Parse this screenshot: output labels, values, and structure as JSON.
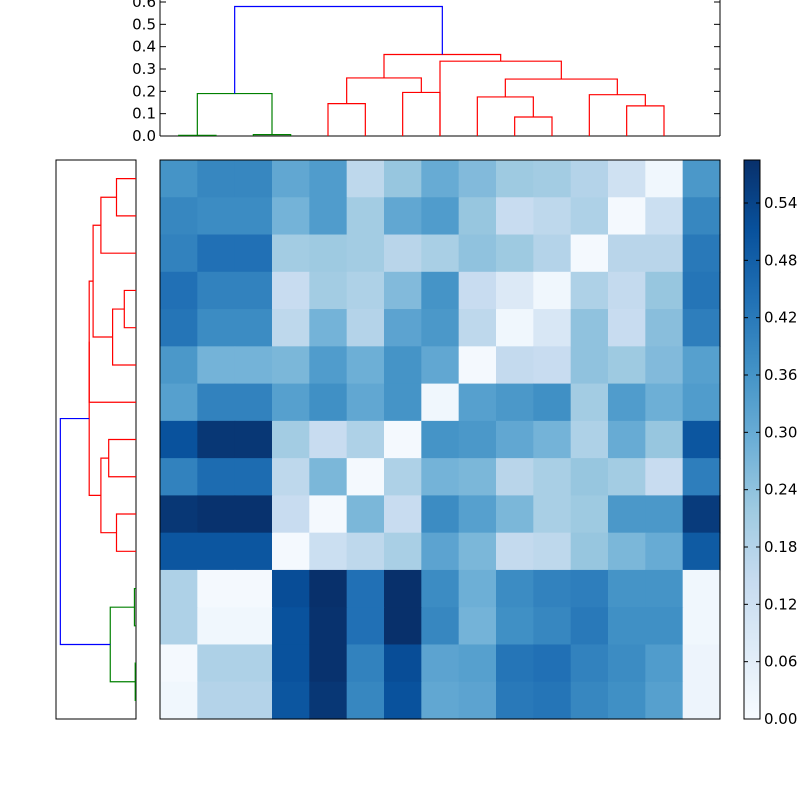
{
  "chart_data": [
    {
      "type": "dendrogram",
      "orientation": "top",
      "ylim": [
        0,
        0.6
      ],
      "yticks": [
        0.0,
        0.1,
        0.2,
        0.3,
        0.4,
        0.5,
        0.6
      ],
      "ytick_labels": [
        "0.0",
        "0.1",
        "0.2",
        "0.3",
        "0.4",
        "0.5",
        "0.6"
      ],
      "leaf_count": 15,
      "links": [
        {
          "left": 0.5,
          "right": 1.5,
          "height": 0.003,
          "left_h": 0,
          "right_h": 0,
          "color": "#008000"
        },
        {
          "left": 2.5,
          "right": 3.5,
          "height": 0.006,
          "left_h": 0,
          "right_h": 0,
          "color": "#008000"
        },
        {
          "left": 1.0,
          "right": 3.0,
          "height": 0.19,
          "left_h": 0.003,
          "right_h": 0.006,
          "color": "#008000"
        },
        {
          "left": 4.5,
          "right": 5.5,
          "height": 0.145,
          "left_h": 0,
          "right_h": 0,
          "color": "#ff0000"
        },
        {
          "left": 6.5,
          "right": 7.5,
          "height": 0.195,
          "left_h": 0,
          "right_h": 0,
          "color": "#ff0000"
        },
        {
          "left": 5.0,
          "right": 7.0,
          "height": 0.26,
          "left_h": 0.145,
          "right_h": 0.195,
          "color": "#ff0000"
        },
        {
          "left": 9.5,
          "right": 10.5,
          "height": 0.085,
          "left_h": 0,
          "right_h": 0,
          "color": "#ff0000"
        },
        {
          "left": 8.5,
          "right": 10.0,
          "height": 0.175,
          "left_h": 0,
          "right_h": 0.085,
          "color": "#ff0000"
        },
        {
          "left": 12.5,
          "right": 13.5,
          "height": 0.135,
          "left_h": 0,
          "right_h": 0,
          "color": "#ff0000"
        },
        {
          "left": 11.5,
          "right": 13.0,
          "height": 0.185,
          "left_h": 0,
          "right_h": 0.135,
          "color": "#ff0000"
        },
        {
          "left": 9.25,
          "right": 12.25,
          "height": 0.255,
          "left_h": 0.175,
          "right_h": 0.185,
          "color": "#ff0000"
        },
        {
          "left": 7.5,
          "right": 10.75,
          "height": 0.335,
          "left_h": 0,
          "right_h": 0.255,
          "color": "#ff0000"
        },
        {
          "left": 6.0,
          "right": 9.125,
          "height": 0.365,
          "left_h": 0.26,
          "right_h": 0.335,
          "color": "#ff0000"
        },
        {
          "left": 2.0,
          "right": 7.5625,
          "height": 0.58,
          "left_h": 0.19,
          "right_h": 0.365,
          "color": "#0000ff"
        }
      ]
    },
    {
      "type": "dendrogram",
      "orientation": "left",
      "leaf_count": 15,
      "links": [
        {
          "a": 0.5,
          "b": 1.5,
          "depth": 0.25,
          "a_d": 0,
          "b_d": 0,
          "color": "#ff0000"
        },
        {
          "a": 1.0,
          "b": 2.5,
          "depth": 0.45,
          "a_d": 0.25,
          "b_d": 0,
          "color": "#ff0000"
        },
        {
          "a": 3.5,
          "b": 4.5,
          "depth": 0.15,
          "a_d": 0,
          "b_d": 0,
          "color": "#ff0000"
        },
        {
          "a": 4.0,
          "b": 5.5,
          "depth": 0.3,
          "a_d": 0.15,
          "b_d": 0,
          "color": "#ff0000"
        },
        {
          "a": 1.75,
          "b": 4.75,
          "depth": 0.55,
          "a_d": 0.45,
          "b_d": 0.3,
          "color": "#ff0000"
        },
        {
          "a": 3.25,
          "b": 6.5,
          "depth": 0.6,
          "a_d": 0.55,
          "b_d": 0,
          "color": "#ff0000"
        },
        {
          "a": 7.5,
          "b": 8.5,
          "depth": 0.35,
          "a_d": 0,
          "b_d": 0,
          "color": "#ff0000"
        },
        {
          "a": 9.5,
          "b": 10.5,
          "depth": 0.25,
          "a_d": 0,
          "b_d": 0,
          "color": "#ff0000"
        },
        {
          "a": 8.0,
          "b": 10.0,
          "depth": 0.45,
          "a_d": 0.35,
          "b_d": 0.25,
          "color": "#ff0000"
        },
        {
          "a": 4.875,
          "b": 9.0,
          "depth": 0.6,
          "a_d": 0.6,
          "b_d": 0.45,
          "color": "#ff0000"
        },
        {
          "a": 11.5,
          "b": 12.5,
          "depth": 0.02,
          "a_d": 0,
          "b_d": 0,
          "color": "#008000"
        },
        {
          "a": 13.5,
          "b": 14.5,
          "depth": 0.01,
          "a_d": 0,
          "b_d": 0,
          "color": "#008000"
        },
        {
          "a": 12.0,
          "b": 14.0,
          "depth": 0.33,
          "a_d": 0.02,
          "b_d": 0.01,
          "color": "#008000"
        },
        {
          "a": 6.9375,
          "b": 13.0,
          "depth": 0.97,
          "a_d": 0.6,
          "b_d": 0.33,
          "color": "#0000ff"
        }
      ]
    },
    {
      "type": "heatmap",
      "rows": 15,
      "cols": 15,
      "values": [
        [
          0.36,
          0.39,
          0.39,
          0.31,
          0.34,
          0.16,
          0.23,
          0.3,
          0.26,
          0.22,
          0.21,
          0.18,
          0.12,
          0.02,
          0.35
        ],
        [
          0.39,
          0.38,
          0.38,
          0.28,
          0.34,
          0.21,
          0.31,
          0.34,
          0.23,
          0.14,
          0.16,
          0.19,
          0.01,
          0.13,
          0.39
        ],
        [
          0.4,
          0.44,
          0.44,
          0.21,
          0.22,
          0.21,
          0.17,
          0.2,
          0.24,
          0.22,
          0.18,
          0.01,
          0.17,
          0.17,
          0.42
        ],
        [
          0.44,
          0.4,
          0.4,
          0.14,
          0.21,
          0.19,
          0.26,
          0.36,
          0.14,
          0.08,
          0.02,
          0.19,
          0.15,
          0.23,
          0.43
        ],
        [
          0.43,
          0.38,
          0.38,
          0.16,
          0.28,
          0.18,
          0.32,
          0.35,
          0.16,
          0.02,
          0.09,
          0.24,
          0.14,
          0.25,
          0.41
        ],
        [
          0.35,
          0.28,
          0.28,
          0.27,
          0.34,
          0.29,
          0.36,
          0.31,
          0.01,
          0.15,
          0.14,
          0.24,
          0.22,
          0.26,
          0.33
        ],
        [
          0.33,
          0.4,
          0.4,
          0.33,
          0.37,
          0.31,
          0.36,
          0.02,
          0.33,
          0.35,
          0.37,
          0.21,
          0.34,
          0.29,
          0.34
        ],
        [
          0.51,
          0.57,
          0.57,
          0.21,
          0.14,
          0.19,
          0.01,
          0.36,
          0.35,
          0.31,
          0.28,
          0.19,
          0.3,
          0.23,
          0.5
        ],
        [
          0.4,
          0.45,
          0.45,
          0.16,
          0.27,
          0.01,
          0.19,
          0.28,
          0.27,
          0.17,
          0.2,
          0.23,
          0.21,
          0.14,
          0.41
        ],
        [
          0.57,
          0.58,
          0.58,
          0.14,
          0.01,
          0.27,
          0.14,
          0.38,
          0.33,
          0.27,
          0.2,
          0.22,
          0.35,
          0.35,
          0.56
        ],
        [
          0.5,
          0.5,
          0.5,
          0.01,
          0.13,
          0.16,
          0.2,
          0.32,
          0.27,
          0.15,
          0.16,
          0.23,
          0.27,
          0.3,
          0.49
        ],
        [
          0.19,
          0.01,
          0.01,
          0.52,
          0.59,
          0.44,
          0.59,
          0.38,
          0.29,
          0.38,
          0.4,
          0.41,
          0.36,
          0.36,
          0.02
        ],
        [
          0.19,
          0.02,
          0.02,
          0.51,
          0.58,
          0.44,
          0.59,
          0.39,
          0.28,
          0.37,
          0.39,
          0.42,
          0.37,
          0.37,
          0.02
        ],
        [
          0.01,
          0.19,
          0.19,
          0.51,
          0.58,
          0.4,
          0.52,
          0.32,
          0.33,
          0.43,
          0.44,
          0.4,
          0.38,
          0.34,
          0.03
        ],
        [
          0.02,
          0.18,
          0.18,
          0.5,
          0.57,
          0.39,
          0.51,
          0.31,
          0.32,
          0.42,
          0.43,
          0.39,
          0.37,
          0.33,
          0.03
        ]
      ],
      "colormap": [
        "#f7fbff",
        "#deebf7",
        "#c6dbef",
        "#9ecae1",
        "#6baed6",
        "#4292c6",
        "#2171b5",
        "#08519c",
        "#08306b"
      ],
      "vmin": 0,
      "vmax": 0.585
    },
    {
      "type": "colorbar",
      "ticks": [
        0.0,
        0.06,
        0.12,
        0.18,
        0.24,
        0.3,
        0.36,
        0.42,
        0.48,
        0.54
      ],
      "tick_labels": [
        "0.00",
        "0.06",
        "0.12",
        "0.18",
        "0.24",
        "0.30",
        "0.36",
        "0.42",
        "0.48",
        "0.54"
      ],
      "vmin": 0,
      "vmax": 0.585
    }
  ]
}
